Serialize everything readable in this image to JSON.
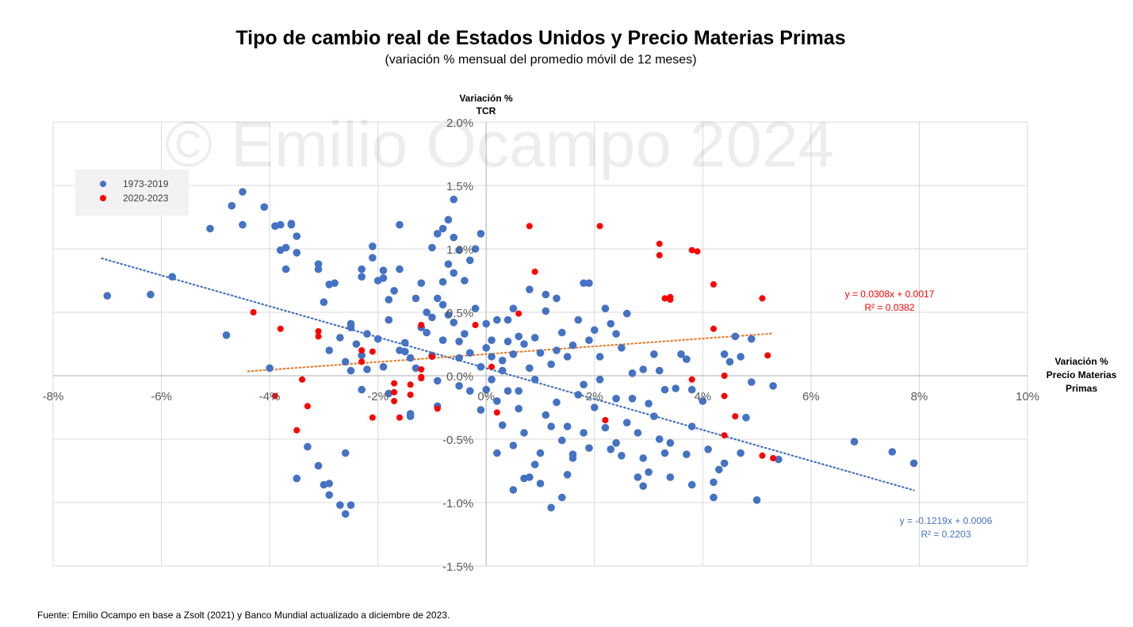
{
  "title": "Tipo de cambio real de Estados Unidos y Precio Materias Primas",
  "subtitle": "(variación % mensual del promedio móvil de 12 meses)",
  "watermark": "© Emilio Ocampo 2024",
  "source": "Fuente: Emilio Ocampo en base a Zsolt (2021) y Banco Mundial actualizado a diciembre de 2023.",
  "colors": {
    "series1": "#4472C4",
    "series2": "#FF0000",
    "trend1": "#4472C4",
    "trend2": "#ED7D31",
    "grid": "#D9D9D9",
    "legend_bg": "#F2F2F2"
  },
  "chart_data": {
    "type": "scatter",
    "grid": true,
    "legend_placement": "top-left",
    "xlim": [
      -8,
      10
    ],
    "ylim": [
      -1.5,
      2.0
    ],
    "x_ticks": [
      -8,
      -6,
      -4,
      -2,
      0,
      2,
      4,
      6,
      8,
      10
    ],
    "x_tick_labels": [
      "-8%",
      "-6%",
      "-4%",
      "-2%",
      "0%",
      "2%",
      "4%",
      "6%",
      "8%",
      "10%"
    ],
    "y_ticks": [
      -1.5,
      -1.0,
      -0.5,
      0.0,
      0.5,
      1.0,
      1.5,
      2.0
    ],
    "y_tick_labels": [
      "-1.5%",
      "-1.0%",
      "-0.5%",
      "0.0%",
      "0.5%",
      "1.0%",
      "1.5%",
      "2.0%"
    ],
    "xlabel_lines": [
      "Variación %",
      "Precio Materias",
      "Primas"
    ],
    "ylabel_lines": [
      "Variación %",
      "TCR"
    ],
    "series": [
      {
        "name": "1973-2019",
        "trendline": {
          "x_range": [
            -7.1,
            7.9
          ],
          "equation": "y = -0.1219x + 0.0006",
          "r2": "R² = 0.2203"
        },
        "points": [
          [
            -7.0,
            0.63
          ],
          [
            -6.2,
            0.64
          ],
          [
            -5.8,
            0.78
          ],
          [
            -5.1,
            1.16
          ],
          [
            -4.8,
            0.32
          ],
          [
            -4.7,
            1.34
          ],
          [
            -4.5,
            1.45
          ],
          [
            -4.5,
            1.19
          ],
          [
            -4.1,
            1.33
          ],
          [
            -4.0,
            0.06
          ],
          [
            -3.9,
            1.18
          ],
          [
            -3.8,
            1.19
          ],
          [
            -3.8,
            0.99
          ],
          [
            -3.7,
            1.01
          ],
          [
            -3.6,
            1.19
          ],
          [
            -3.6,
            1.2
          ],
          [
            -3.5,
            1.1
          ],
          [
            -3.5,
            0.97
          ],
          [
            -3.7,
            0.84
          ],
          [
            -3.5,
            -0.81
          ],
          [
            -3.3,
            -0.56
          ],
          [
            -3.1,
            -0.71
          ],
          [
            -3.0,
            -0.86
          ],
          [
            -2.9,
            -0.85
          ],
          [
            -2.9,
            -0.94
          ],
          [
            -2.9,
            0.2
          ],
          [
            -2.9,
            0.72
          ],
          [
            -2.8,
            0.73
          ],
          [
            -3.0,
            0.58
          ],
          [
            -3.1,
            0.84
          ],
          [
            -3.1,
            0.88
          ],
          [
            -2.7,
            -1.02
          ],
          [
            -2.6,
            -0.61
          ],
          [
            -2.6,
            -1.09
          ],
          [
            -2.5,
            -1.02
          ],
          [
            -2.4,
            0.25
          ],
          [
            -2.5,
            0.41
          ],
          [
            -2.5,
            0.38
          ],
          [
            -2.7,
            0.3
          ],
          [
            -2.6,
            0.11
          ],
          [
            -2.5,
            0.04
          ],
          [
            -2.3,
            0.84
          ],
          [
            -2.3,
            0.78
          ],
          [
            -2.3,
            -0.11
          ],
          [
            -2.3,
            0.16
          ],
          [
            -2.2,
            0.05
          ],
          [
            -2.2,
            0.33
          ],
          [
            -2.0,
            0.29
          ],
          [
            -2.1,
            1.02
          ],
          [
            -2.1,
            0.93
          ],
          [
            -2.0,
            0.75
          ],
          [
            -1.9,
            0.83
          ],
          [
            -1.9,
            0.77
          ],
          [
            -1.9,
            0.07
          ],
          [
            -1.8,
            0.44
          ],
          [
            -1.8,
            -0.14
          ],
          [
            -1.8,
            0.6
          ],
          [
            -1.7,
            0.67
          ],
          [
            -1.6,
            0.84
          ],
          [
            -1.6,
            0.2
          ],
          [
            -1.6,
            1.19
          ],
          [
            -1.5,
            0.26
          ],
          [
            -1.5,
            0.19
          ],
          [
            -1.4,
            0.14
          ],
          [
            -1.4,
            -0.3
          ],
          [
            -1.4,
            -0.32
          ],
          [
            -1.3,
            0.06
          ],
          [
            -1.3,
            0.61
          ],
          [
            -1.2,
            0.73
          ],
          [
            -1.2,
            0.38
          ],
          [
            -1.1,
            0.34
          ],
          [
            -1.1,
            0.5
          ],
          [
            -1.0,
            0.16
          ],
          [
            -1.0,
            0.46
          ],
          [
            -1.0,
            1.01
          ],
          [
            -0.9,
            1.12
          ],
          [
            -0.9,
            0.61
          ],
          [
            -0.9,
            -0.24
          ],
          [
            -0.9,
            -0.04
          ],
          [
            -0.8,
            0.28
          ],
          [
            -0.8,
            0.74
          ],
          [
            -0.8,
            0.56
          ],
          [
            -0.8,
            1.16
          ],
          [
            -0.7,
            1.23
          ],
          [
            -0.7,
            0.88
          ],
          [
            -0.7,
            0.48
          ],
          [
            -0.6,
            1.39
          ],
          [
            -0.6,
            1.09
          ],
          [
            -0.6,
            0.81
          ],
          [
            -0.6,
            0.42
          ],
          [
            -0.5,
            0.27
          ],
          [
            -0.5,
            0.14
          ],
          [
            -0.5,
            -0.08
          ],
          [
            -0.5,
            0.99
          ],
          [
            -0.4,
            0.75
          ],
          [
            -0.4,
            0.33
          ],
          [
            -0.3,
            0.18
          ],
          [
            -0.3,
            -0.12
          ],
          [
            -0.3,
            0.91
          ],
          [
            -0.2,
            1.0
          ],
          [
            -0.2,
            0.53
          ],
          [
            -0.1,
            0.07
          ],
          [
            -0.1,
            -0.27
          ],
          [
            -0.1,
            1.12
          ],
          [
            0.0,
            0.22
          ],
          [
            0.0,
            -0.11
          ],
          [
            0.0,
            0.41
          ],
          [
            0.1,
            0.28
          ],
          [
            0.1,
            -0.03
          ],
          [
            0.1,
            0.15
          ],
          [
            0.2,
            0.44
          ],
          [
            0.2,
            -0.61
          ],
          [
            0.2,
            -0.2
          ],
          [
            0.3,
            0.04
          ],
          [
            0.3,
            0.12
          ],
          [
            0.3,
            -0.39
          ],
          [
            0.4,
            -0.12
          ],
          [
            0.4,
            0.27
          ],
          [
            0.4,
            0.44
          ],
          [
            0.5,
            0.17
          ],
          [
            0.5,
            -0.55
          ],
          [
            0.5,
            -0.9
          ],
          [
            0.5,
            0.53
          ],
          [
            0.6,
            -0.12
          ],
          [
            0.6,
            0.31
          ],
          [
            0.6,
            -0.26
          ],
          [
            0.7,
            -0.81
          ],
          [
            0.7,
            0.25
          ],
          [
            0.7,
            -0.45
          ],
          [
            0.8,
            0.06
          ],
          [
            0.8,
            -0.8
          ],
          [
            0.8,
            0.68
          ],
          [
            0.9,
            -0.7
          ],
          [
            0.9,
            -0.03
          ],
          [
            0.9,
            0.3
          ],
          [
            1.0,
            -0.61
          ],
          [
            1.0,
            0.18
          ],
          [
            1.0,
            -0.85
          ],
          [
            1.1,
            -0.31
          ],
          [
            1.1,
            0.64
          ],
          [
            1.1,
            0.51
          ],
          [
            1.2,
            -1.04
          ],
          [
            1.2,
            -0.4
          ],
          [
            1.2,
            0.09
          ],
          [
            1.3,
            0.61
          ],
          [
            1.3,
            -0.21
          ],
          [
            1.3,
            0.2
          ],
          [
            1.4,
            -0.51
          ],
          [
            1.4,
            -0.96
          ],
          [
            1.4,
            0.34
          ],
          [
            1.5,
            -0.4
          ],
          [
            1.5,
            0.15
          ],
          [
            1.5,
            -0.78
          ],
          [
            1.6,
            0.24
          ],
          [
            1.6,
            -0.62
          ],
          [
            1.6,
            -0.65
          ],
          [
            1.7,
            -0.15
          ],
          [
            1.7,
            0.44
          ],
          [
            1.8,
            0.73
          ],
          [
            1.8,
            -0.45
          ],
          [
            1.8,
            -0.07
          ],
          [
            1.9,
            0.73
          ],
          [
            1.9,
            0.28
          ],
          [
            1.9,
            -0.57
          ],
          [
            2.0,
            0.36
          ],
          [
            2.0,
            -0.25
          ],
          [
            2.1,
            -0.03
          ],
          [
            2.1,
            0.15
          ],
          [
            2.2,
            0.53
          ],
          [
            2.2,
            -0.41
          ],
          [
            2.3,
            0.41
          ],
          [
            2.3,
            -0.58
          ],
          [
            2.4,
            0.33
          ],
          [
            2.4,
            -0.18
          ],
          [
            2.4,
            -0.53
          ],
          [
            2.5,
            0.22
          ],
          [
            2.5,
            -0.63
          ],
          [
            2.6,
            0.49
          ],
          [
            2.6,
            -0.37
          ],
          [
            2.7,
            0.02
          ],
          [
            2.7,
            -0.18
          ],
          [
            2.8,
            -0.8
          ],
          [
            2.8,
            -0.45
          ],
          [
            2.9,
            0.05
          ],
          [
            2.9,
            -0.65
          ],
          [
            2.9,
            -0.87
          ],
          [
            3.0,
            -0.22
          ],
          [
            3.0,
            -0.76
          ],
          [
            3.1,
            0.17
          ],
          [
            3.1,
            -0.32
          ],
          [
            3.2,
            -0.5
          ],
          [
            3.2,
            0.04
          ],
          [
            3.3,
            -0.11
          ],
          [
            3.3,
            -0.61
          ],
          [
            3.4,
            -0.53
          ],
          [
            3.4,
            -0.8
          ],
          [
            3.5,
            -0.1
          ],
          [
            3.6,
            0.17
          ],
          [
            3.7,
            0.13
          ],
          [
            3.7,
            -0.62
          ],
          [
            3.8,
            -0.4
          ],
          [
            3.8,
            -0.86
          ],
          [
            3.8,
            -0.11
          ],
          [
            4.0,
            -0.2
          ],
          [
            4.1,
            -0.58
          ],
          [
            4.2,
            -0.84
          ],
          [
            4.2,
            -0.96
          ],
          [
            4.3,
            -0.74
          ],
          [
            4.4,
            0.17
          ],
          [
            4.4,
            -0.69
          ],
          [
            4.5,
            0.11
          ],
          [
            4.6,
            0.31
          ],
          [
            4.7,
            0.15
          ],
          [
            4.7,
            -0.61
          ],
          [
            4.8,
            -0.33
          ],
          [
            4.9,
            -0.05
          ],
          [
            4.9,
            0.29
          ],
          [
            5.0,
            -0.98
          ],
          [
            5.3,
            -0.08
          ],
          [
            5.4,
            -0.66
          ],
          [
            6.8,
            -0.52
          ],
          [
            7.5,
            -0.6
          ],
          [
            7.9,
            -0.69
          ]
        ]
      },
      {
        "name": "2020-2023",
        "trendline": {
          "x_range": [
            -4.4,
            5.3
          ],
          "equation": "y = 0.0308x + 0.0017",
          "r2": "R² = 0.0382"
        },
        "points": [
          [
            -4.3,
            0.5
          ],
          [
            -3.9,
            -0.16
          ],
          [
            -3.8,
            0.37
          ],
          [
            -3.5,
            -0.43
          ],
          [
            -3.4,
            -0.03
          ],
          [
            -3.3,
            -0.24
          ],
          [
            -3.1,
            0.31
          ],
          [
            -3.1,
            0.35
          ],
          [
            -2.3,
            0.2
          ],
          [
            -2.3,
            0.11
          ],
          [
            -2.1,
            0.19
          ],
          [
            -2.1,
            -0.33
          ],
          [
            -1.7,
            -0.06
          ],
          [
            -1.7,
            -0.13
          ],
          [
            -1.7,
            -0.2
          ],
          [
            -1.6,
            -0.33
          ],
          [
            -1.4,
            -0.07
          ],
          [
            -1.4,
            -0.15
          ],
          [
            -1.2,
            -0.02
          ],
          [
            -1.2,
            0.05
          ],
          [
            -1.2,
            -0.01
          ],
          [
            -1.2,
            0.4
          ],
          [
            -1.0,
            0.15
          ],
          [
            -0.9,
            -0.26
          ],
          [
            -0.2,
            0.4
          ],
          [
            0.1,
            0.07
          ],
          [
            0.2,
            -0.29
          ],
          [
            0.6,
            0.49
          ],
          [
            0.8,
            1.18
          ],
          [
            0.9,
            0.82
          ],
          [
            2.1,
            1.18
          ],
          [
            2.2,
            -0.35
          ],
          [
            3.2,
            1.04
          ],
          [
            3.2,
            0.95
          ],
          [
            3.3,
            0.61
          ],
          [
            3.4,
            0.62
          ],
          [
            3.4,
            0.6
          ],
          [
            3.8,
            -0.03
          ],
          [
            3.8,
            0.99
          ],
          [
            3.9,
            0.98
          ],
          [
            4.2,
            0.72
          ],
          [
            4.2,
            0.37
          ],
          [
            4.4,
            -0.16
          ],
          [
            4.4,
            0.0
          ],
          [
            4.4,
            -0.47
          ],
          [
            4.6,
            -0.32
          ],
          [
            5.1,
            0.61
          ],
          [
            5.1,
            -0.63
          ],
          [
            5.2,
            0.16
          ],
          [
            5.3,
            -0.65
          ]
        ]
      }
    ]
  }
}
